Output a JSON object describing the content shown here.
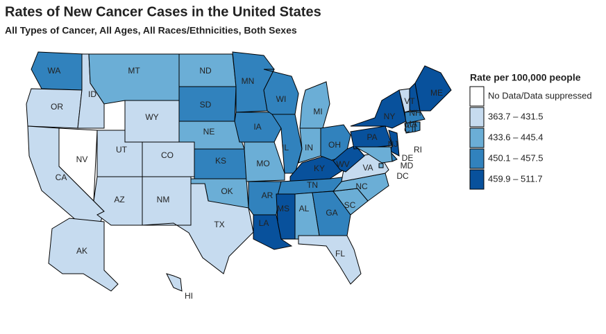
{
  "header": {
    "title": "Rates of New Cancer Cases in the United States",
    "subtitle": "All Types of Cancer, All Ages, All Races/Ethnicities, Both Sexes"
  },
  "legend": {
    "title": "Rate per 100,000 people",
    "items": [
      {
        "label": "No Data/Data suppressed",
        "color": "#ffffff"
      },
      {
        "label": "363.7 – 431.5",
        "color": "#c6dbef"
      },
      {
        "label": "433.6 – 445.4",
        "color": "#6baed6"
      },
      {
        "label": "450.1 – 457.5",
        "color": "#3182bd"
      },
      {
        "label": "459.9 – 511.7",
        "color": "#08519c"
      }
    ]
  },
  "states": [
    {
      "abbr": "WA",
      "color": "#3182bd"
    },
    {
      "abbr": "OR",
      "color": "#c6dbef"
    },
    {
      "abbr": "CA",
      "color": "#c6dbef"
    },
    {
      "abbr": "NV",
      "color": "#ffffff"
    },
    {
      "abbr": "ID",
      "color": "#c6dbef"
    },
    {
      "abbr": "MT",
      "color": "#6baed6"
    },
    {
      "abbr": "WY",
      "color": "#c6dbef"
    },
    {
      "abbr": "UT",
      "color": "#c6dbef"
    },
    {
      "abbr": "CO",
      "color": "#c6dbef"
    },
    {
      "abbr": "AZ",
      "color": "#c6dbef"
    },
    {
      "abbr": "NM",
      "color": "#c6dbef"
    },
    {
      "abbr": "ND",
      "color": "#6baed6"
    },
    {
      "abbr": "SD",
      "color": "#3182bd"
    },
    {
      "abbr": "NE",
      "color": "#6baed6"
    },
    {
      "abbr": "KS",
      "color": "#3182bd"
    },
    {
      "abbr": "OK",
      "color": "#6baed6"
    },
    {
      "abbr": "TX",
      "color": "#c6dbef"
    },
    {
      "abbr": "MN",
      "color": "#3182bd"
    },
    {
      "abbr": "IA",
      "color": "#3182bd"
    },
    {
      "abbr": "MO",
      "color": "#6baed6"
    },
    {
      "abbr": "AR",
      "color": "#3182bd"
    },
    {
      "abbr": "LA",
      "color": "#08519c"
    },
    {
      "abbr": "WI",
      "color": "#3182bd"
    },
    {
      "abbr": "IL",
      "color": "#3182bd"
    },
    {
      "abbr": "MI",
      "color": "#6baed6"
    },
    {
      "abbr": "IN",
      "color": "#6baed6"
    },
    {
      "abbr": "OH",
      "color": "#3182bd"
    },
    {
      "abbr": "KY",
      "color": "#08519c"
    },
    {
      "abbr": "TN",
      "color": "#3182bd"
    },
    {
      "abbr": "MS",
      "color": "#08519c"
    },
    {
      "abbr": "AL",
      "color": "#6baed6"
    },
    {
      "abbr": "GA",
      "color": "#3182bd"
    },
    {
      "abbr": "FL",
      "color": "#c6dbef"
    },
    {
      "abbr": "SC",
      "color": "#6baed6"
    },
    {
      "abbr": "NC",
      "color": "#6baed6"
    },
    {
      "abbr": "VA",
      "color": "#c6dbef"
    },
    {
      "abbr": "WV",
      "color": "#08519c"
    },
    {
      "abbr": "PA",
      "color": "#08519c"
    },
    {
      "abbr": "NY",
      "color": "#08519c"
    },
    {
      "abbr": "NJ",
      "color": "#08519c"
    },
    {
      "abbr": "DE",
      "color": "#3182bd"
    },
    {
      "abbr": "MD",
      "color": "#6baed6"
    },
    {
      "abbr": "DC",
      "color": "#6baed6"
    },
    {
      "abbr": "VT",
      "color": "#c6dbef"
    },
    {
      "abbr": "NH",
      "color": "#08519c"
    },
    {
      "abbr": "ME",
      "color": "#08519c"
    },
    {
      "abbr": "MA",
      "color": "#3182bd"
    },
    {
      "abbr": "CT",
      "color": "#3182bd"
    },
    {
      "abbr": "RI",
      "color": "#3182bd"
    },
    {
      "abbr": "AK",
      "color": "#c6dbef"
    },
    {
      "abbr": "HI",
      "color": "#c6dbef"
    }
  ]
}
